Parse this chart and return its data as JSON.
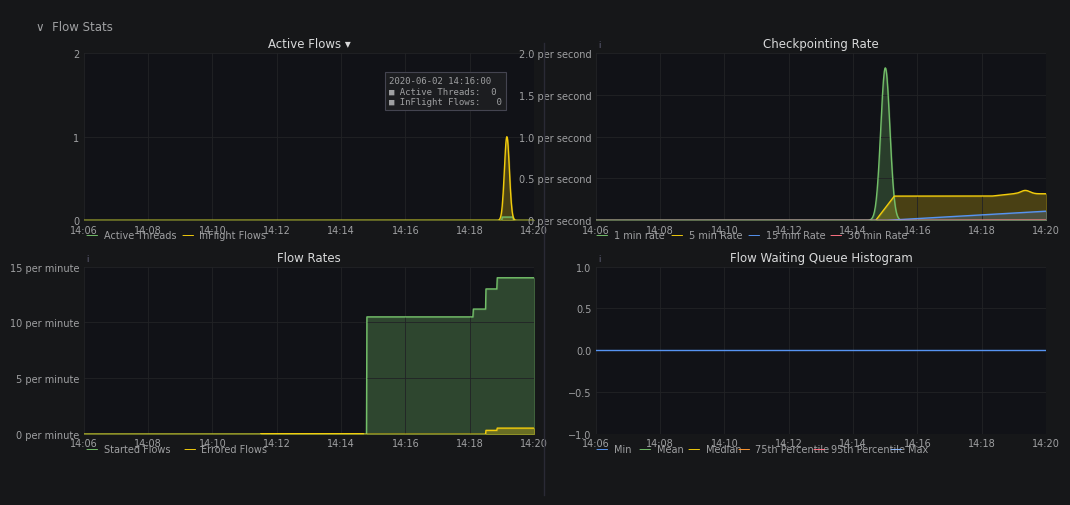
{
  "bg_color": "#161719",
  "plot_bg": "#111217",
  "grid_color": "#222326",
  "text_color": "#9fa0a2",
  "title_color": "#d8d9da",
  "header_text": "∨  Flow Stats",
  "time_labels": [
    "14:06",
    "14:08",
    "14:10",
    "14:12",
    "14:14",
    "14:16",
    "14:18",
    "14:20"
  ],
  "time_ticks": [
    0,
    2,
    4,
    6,
    8,
    10,
    12,
    14
  ],
  "panel1_title": "Active Flows ▾",
  "panel1_ylim": [
    0,
    2
  ],
  "panel1_yticks": [
    0,
    1,
    2
  ],
  "panel2_title": "Checkpointing Rate",
  "panel2_ylim": [
    0,
    2.0
  ],
  "panel2_yticks": [
    0,
    0.5,
    1.0,
    1.5,
    2.0
  ],
  "panel2_ytick_labels": [
    "0 per second",
    "0.5 per second",
    "1.0 per second",
    "1.5 per second",
    "2.0 per second"
  ],
  "panel3_title": "Flow Rates",
  "panel3_ylim": [
    0,
    15
  ],
  "panel3_yticks": [
    0,
    5,
    10,
    15
  ],
  "panel3_ytick_labels": [
    "0 per minute",
    "5 per minute",
    "10 per minute",
    "15 per minute"
  ],
  "panel4_title": "Flow Waiting Queue Histogram",
  "panel4_ylim": [
    -1.0,
    1.0
  ],
  "panel4_yticks": [
    -1.0,
    -0.5,
    0,
    0.5,
    1.0
  ],
  "color_green": "#73bf69",
  "color_yellow": "#f2cc0c",
  "color_blue": "#5794f2",
  "color_red": "#ff7383",
  "color_orange": "#ff9830",
  "color_lightblue": "#8ab8ff",
  "color_tooltip_bg": "#1c1d20",
  "color_tooltip_border": "#444450"
}
